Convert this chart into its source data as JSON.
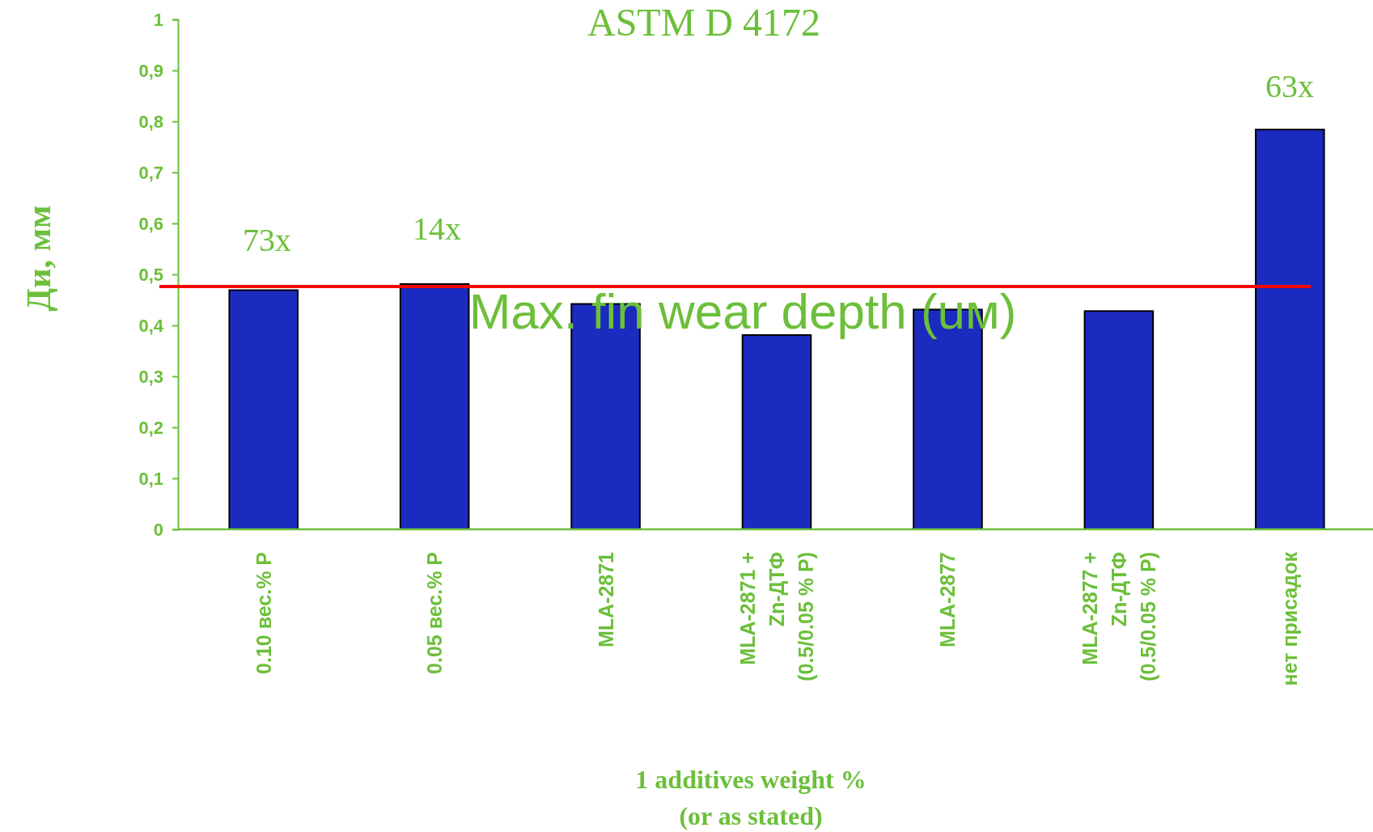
{
  "chart_data": {
    "type": "bar",
    "title": "ASTM D 4172",
    "xlabel": "1 additives weight %\n(or as stated)",
    "ylabel": "Ди, мм",
    "categories": [
      "0.10 вес.% P",
      "0.05 вес.% P",
      "MLA-2871",
      "MLA-2871 +\nZn-ДТФ\n(0.5/0.05 % P)",
      "MLA-2877",
      "MLA-2877 +\nZn-ДТФ\n(0.5/0.05 % P)",
      "нет присадок"
    ],
    "values": [
      0.469,
      0.481,
      0.442,
      0.381,
      0.431,
      0.428,
      0.784
    ],
    "color": "#1c2bbf",
    "ylim": [
      0,
      1
    ],
    "yticks": [
      0,
      {
        "value": 0.1,
        "label": "0,1"
      },
      {
        "value": 0.2,
        "label": "0,2"
      },
      {
        "value": 0.3,
        "label": "0,3"
      },
      {
        "value": 0.4,
        "label": "0,4"
      },
      {
        "value": 0.5,
        "label": "0,5"
      },
      {
        "value": 0.6,
        "label": "0,6"
      },
      {
        "value": 0.7,
        "label": "0,7"
      },
      {
        "value": 0.8,
        "label": "0,8"
      },
      {
        "value": 0.9,
        "label": "0,9"
      },
      1
    ],
    "ref_lines": [
      {
        "axis": "y",
        "value": 0.476,
        "label": "Max. fin wear depth (uм)",
        "color": "#ff0000"
      }
    ],
    "annotations": [
      "73x",
      "14x",
      "63x"
    ],
    "grid": false
  }
}
